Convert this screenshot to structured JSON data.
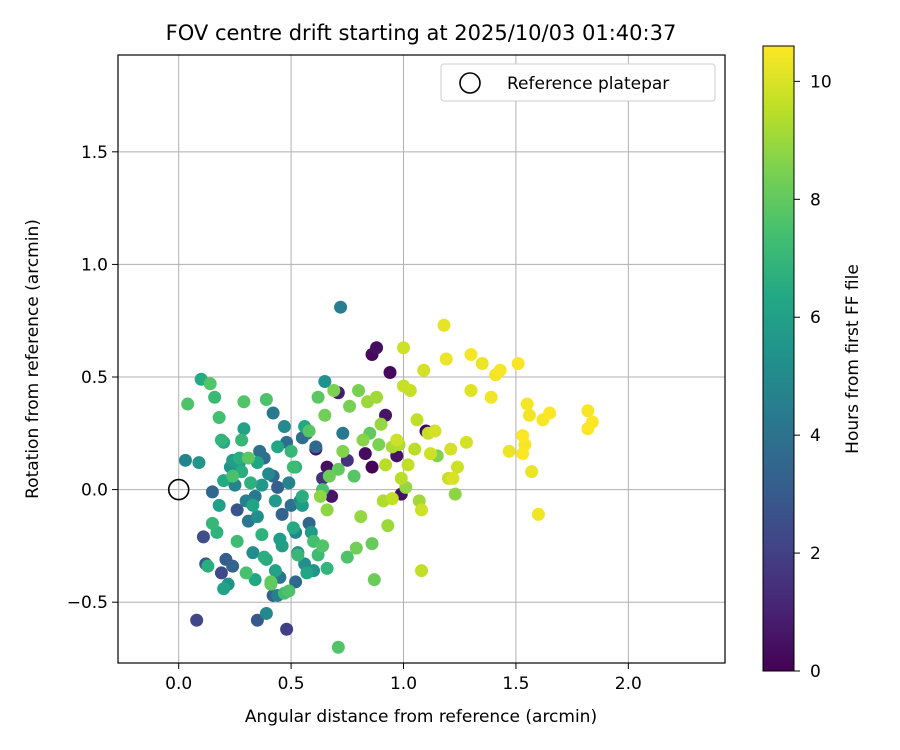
{
  "chart_data": {
    "type": "scatter",
    "title": "FOV centre drift starting at 2025/10/03 01:40:37",
    "xlabel": "Angular distance from reference (arcmin)",
    "ylabel": "Rotation from reference (arcmin)",
    "xlim": [
      -0.27,
      2.43
    ],
    "ylim": [
      -0.77,
      1.93
    ],
    "xticks": [
      0.0,
      0.5,
      1.0,
      1.5,
      2.0
    ],
    "xtick_labels": [
      "0.0",
      "0.5",
      "1.0",
      "1.5",
      "2.0"
    ],
    "yticks": [
      -0.5,
      0.0,
      0.5,
      1.0,
      1.5
    ],
    "ytick_labels": [
      "−0.5",
      "0.0",
      "0.5",
      "1.0",
      "1.5"
    ],
    "grid": true,
    "legend": {
      "placement": "top-right",
      "entries": [
        "Reference platepar"
      ]
    },
    "reference_point": {
      "x": 0.0,
      "y": 0.0
    },
    "colorbar": {
      "label": "Hours from first FF file",
      "range": [
        0,
        10.6
      ],
      "ticks": [
        0,
        2,
        4,
        6,
        8,
        10
      ],
      "tick_labels": [
        "0",
        "2",
        "4",
        "6",
        "8",
        "10"
      ],
      "colormap": "viridis"
    },
    "points": [
      [
        0.72,
        0.81,
        4.5
      ],
      [
        0.88,
        0.63,
        0.4
      ],
      [
        0.86,
        0.6,
        0.2
      ],
      [
        0.71,
        0.43,
        0.8
      ],
      [
        0.92,
        0.33,
        0.6
      ],
      [
        0.94,
        0.52,
        0.2
      ],
      [
        0.97,
        0.15,
        0.5
      ],
      [
        0.83,
        0.16,
        0.3
      ],
      [
        0.86,
        0.1,
        0.1
      ],
      [
        0.66,
        0.1,
        0.4
      ],
      [
        0.68,
        -0.03,
        0.6
      ],
      [
        0.75,
        0.13,
        1.5
      ],
      [
        0.61,
        0.18,
        0.5
      ],
      [
        0.64,
        0.05,
        1.5
      ],
      [
        0.73,
        0.25,
        4.3
      ],
      [
        0.58,
        -0.15,
        3.5
      ],
      [
        0.99,
        -0.02,
        0.5
      ],
      [
        1.1,
        0.26,
        0.1
      ],
      [
        0.48,
        -0.62,
        2.0
      ],
      [
        0.08,
        -0.58,
        2.2
      ],
      [
        0.11,
        -0.21,
        2.5
      ],
      [
        0.15,
        -0.01,
        3.5
      ],
      [
        0.03,
        0.13,
        4.8
      ],
      [
        0.09,
        0.12,
        5.5
      ],
      [
        0.12,
        -0.33,
        3.0
      ],
      [
        0.19,
        -0.37,
        2.3
      ],
      [
        0.21,
        -0.31,
        3.1
      ],
      [
        0.24,
        -0.34,
        3.4
      ],
      [
        0.26,
        -0.09,
        2.8
      ],
      [
        0.3,
        -0.05,
        4.6
      ],
      [
        0.34,
        -0.03,
        4.3
      ],
      [
        0.36,
        0.17,
        3.9
      ],
      [
        0.38,
        0.14,
        3.8
      ],
      [
        0.42,
        0.06,
        3.6
      ],
      [
        0.44,
        0.01,
        3.2
      ],
      [
        0.46,
        -0.11,
        3.4
      ],
      [
        0.49,
        0.03,
        4.7
      ],
      [
        0.5,
        -0.07,
        4.0
      ],
      [
        0.52,
        -0.19,
        4.8
      ],
      [
        0.55,
        0.23,
        3.8
      ],
      [
        0.57,
        0.25,
        2.4
      ],
      [
        0.35,
        -0.58,
        3.0
      ],
      [
        0.39,
        -0.55,
        4.9
      ],
      [
        0.42,
        -0.47,
        3.3
      ],
      [
        0.45,
        -0.39,
        4.1
      ],
      [
        0.52,
        -0.41,
        3.6
      ],
      [
        0.31,
        -0.14,
        4.2
      ],
      [
        0.22,
        -0.42,
        5.4
      ],
      [
        0.25,
        0.02,
        4.7
      ],
      [
        0.29,
        0.27,
        6.1
      ],
      [
        0.39,
        0.4,
        7.6
      ],
      [
        0.42,
        0.34,
        4.3
      ],
      [
        0.47,
        0.28,
        5.0
      ],
      [
        0.48,
        0.21,
        3.8
      ],
      [
        0.51,
        0.1,
        7.2
      ],
      [
        0.54,
        -0.05,
        4.9
      ],
      [
        0.56,
        -0.33,
        5.2
      ],
      [
        0.59,
        -0.19,
        5.7
      ],
      [
        0.61,
        0.19,
        3.7
      ],
      [
        0.65,
        0.48,
        5.3
      ],
      [
        0.04,
        0.38,
        7.6
      ],
      [
        0.1,
        0.49,
        6.5
      ],
      [
        0.14,
        0.47,
        7.7
      ],
      [
        0.16,
        0.41,
        7.1
      ],
      [
        0.18,
        0.32,
        7.4
      ],
      [
        0.19,
        0.22,
        6.9
      ],
      [
        0.2,
        0.21,
        6.4
      ],
      [
        0.23,
        0.1,
        5.5
      ],
      [
        0.24,
        0.06,
        7.5
      ],
      [
        0.27,
        0.12,
        6.0
      ],
      [
        0.28,
        0.22,
        7.0
      ],
      [
        0.29,
        0.39,
        7.7
      ],
      [
        0.31,
        0.14,
        7.9
      ],
      [
        0.32,
        0.03,
        6.7
      ],
      [
        0.33,
        -0.07,
        6.2
      ],
      [
        0.35,
        -0.12,
        5.2
      ],
      [
        0.37,
        -0.2,
        6.8
      ],
      [
        0.39,
        -0.31,
        6.5
      ],
      [
        0.41,
        -0.42,
        7.9
      ],
      [
        0.43,
        -0.36,
        6.1
      ],
      [
        0.45,
        -0.22,
        5.8
      ],
      [
        0.47,
        -0.46,
        7.3
      ],
      [
        0.49,
        -0.45,
        7.6
      ],
      [
        0.51,
        -0.17,
        6.4
      ],
      [
        0.53,
        -0.28,
        5.1
      ],
      [
        0.55,
        -0.03,
        6.6
      ],
      [
        0.57,
        -0.37,
        6.2
      ],
      [
        0.6,
        -0.23,
        7.4
      ],
      [
        0.62,
        -0.29,
        7.2
      ],
      [
        0.64,
        -0.25,
        7.7
      ],
      [
        0.15,
        -0.15,
        7.0
      ],
      [
        0.13,
        -0.34,
        6.6
      ],
      [
        0.2,
        -0.44,
        6.1
      ],
      [
        0.17,
        -0.19,
        6.8
      ],
      [
        0.26,
        -0.23,
        7.3
      ],
      [
        0.3,
        -0.37,
        7.5
      ],
      [
        0.34,
        -0.4,
        6.3
      ],
      [
        0.38,
        -0.3,
        6.6
      ],
      [
        0.41,
        -0.41,
        8.0
      ],
      [
        0.44,
        0.19,
        6.3
      ],
      [
        0.5,
        0.17,
        7.0
      ],
      [
        0.52,
        0.1,
        6.8
      ],
      [
        0.56,
        0.28,
        6.3
      ],
      [
        0.58,
        0.26,
        7.8
      ],
      [
        0.62,
        0.41,
        7.9
      ],
      [
        0.65,
        0.33,
        8.3
      ],
      [
        0.67,
        0.06,
        8.2
      ],
      [
        0.69,
        0.44,
        8.5
      ],
      [
        0.71,
        0.09,
        8.0
      ],
      [
        0.73,
        0.17,
        8.6
      ],
      [
        0.75,
        -0.3,
        7.6
      ],
      [
        0.71,
        -0.7,
        7.7
      ],
      [
        0.66,
        -0.35,
        6.9
      ],
      [
        0.64,
        0.0,
        7.5
      ],
      [
        0.66,
        -0.09,
        8.8
      ],
      [
        0.76,
        0.37,
        8.4
      ],
      [
        0.78,
        0.06,
        7.8
      ],
      [
        0.8,
        0.44,
        8.4
      ],
      [
        0.81,
        -0.12,
        8.9
      ],
      [
        0.82,
        0.22,
        8.7
      ],
      [
        0.84,
        0.39,
        9.0
      ],
      [
        0.85,
        0.25,
        8.0
      ],
      [
        0.86,
        -0.24,
        8.1
      ],
      [
        0.87,
        -0.4,
        8.2
      ],
      [
        0.88,
        0.41,
        9.1
      ],
      [
        0.89,
        0.2,
        8.5
      ],
      [
        0.9,
        0.29,
        8.9
      ],
      [
        0.91,
        -0.05,
        9.3
      ],
      [
        0.92,
        0.11,
        9.5
      ],
      [
        0.93,
        -0.16,
        9.0
      ],
      [
        0.95,
        0.19,
        9.2
      ],
      [
        0.97,
        0.22,
        9.8
      ],
      [
        0.99,
        0.05,
        9.5
      ],
      [
        1.0,
        0.46,
        9.7
      ],
      [
        1.0,
        0.63,
        9.8
      ],
      [
        1.02,
        0.11,
        9.6
      ],
      [
        1.03,
        0.44,
        9.7
      ],
      [
        1.05,
        0.18,
        9.5
      ],
      [
        1.06,
        0.31,
        9.6
      ],
      [
        1.07,
        -0.05,
        9.1
      ],
      [
        1.08,
        -0.36,
        9.6
      ],
      [
        1.09,
        0.53,
        9.9
      ],
      [
        1.11,
        0.25,
        9.7
      ],
      [
        1.12,
        0.16,
        9.8
      ],
      [
        1.14,
        0.26,
        9.9
      ],
      [
        1.15,
        0.15,
        8.6
      ],
      [
        1.18,
        0.73,
        10.2
      ],
      [
        1.19,
        0.58,
        10.3
      ],
      [
        1.2,
        0.05,
        9.7
      ],
      [
        1.21,
        0.18,
        9.9
      ],
      [
        1.23,
        -0.02,
        8.8
      ],
      [
        1.24,
        0.1,
        9.8
      ],
      [
        1.28,
        0.21,
        9.9
      ],
      [
        1.3,
        0.6,
        10.5
      ],
      [
        1.3,
        0.44,
        10.1
      ],
      [
        1.35,
        0.56,
        10.3
      ],
      [
        1.39,
        0.41,
        10.4
      ],
      [
        1.41,
        0.51,
        10.4
      ],
      [
        1.43,
        0.53,
        10.5
      ],
      [
        1.47,
        0.17,
        10.3
      ],
      [
        1.51,
        0.56,
        10.5
      ],
      [
        1.53,
        0.24,
        10.6
      ],
      [
        1.54,
        0.2,
        10.5
      ],
      [
        1.55,
        0.38,
        10.5
      ],
      [
        1.56,
        0.33,
        10.4
      ],
      [
        1.57,
        0.08,
        10.3
      ],
      [
        1.6,
        -0.11,
        10.4
      ],
      [
        1.62,
        0.31,
        10.5
      ],
      [
        1.65,
        0.34,
        10.6
      ],
      [
        1.82,
        0.35,
        10.5
      ],
      [
        1.82,
        0.27,
        10.6
      ],
      [
        1.84,
        0.3,
        10.6
      ],
      [
        1.53,
        0.16,
        10.6
      ],
      [
        1.22,
        0.05,
        10.0
      ],
      [
        1.08,
        -0.09,
        9.8
      ],
      [
        0.95,
        -0.04,
        9.6
      ],
      [
        0.98,
        0.2,
        9.3
      ],
      [
        1.01,
        0.01,
        8.9
      ],
      [
        0.79,
        -0.26,
        8.3
      ],
      [
        0.63,
        -0.03,
        8.8
      ],
      [
        0.55,
        -0.07,
        5.8
      ],
      [
        0.53,
        -0.29,
        7.0
      ],
      [
        0.44,
        -0.47,
        4.6
      ],
      [
        0.37,
        0.02,
        5.6
      ],
      [
        0.33,
        -0.28,
        5.1
      ],
      [
        0.28,
        0.08,
        6.6
      ],
      [
        0.24,
        0.13,
        5.9
      ],
      [
        0.2,
        0.04,
        6.4
      ],
      [
        0.4,
        0.07,
        5.0
      ],
      [
        0.46,
        -0.25,
        5.9
      ],
      [
        0.6,
        -0.36,
        5.5
      ],
      [
        0.35,
        0.12,
        6.2
      ],
      [
        0.18,
        -0.07,
        6.0
      ],
      [
        0.27,
        0.14,
        6.6
      ],
      [
        0.43,
        -0.05,
        5.7
      ]
    ]
  }
}
